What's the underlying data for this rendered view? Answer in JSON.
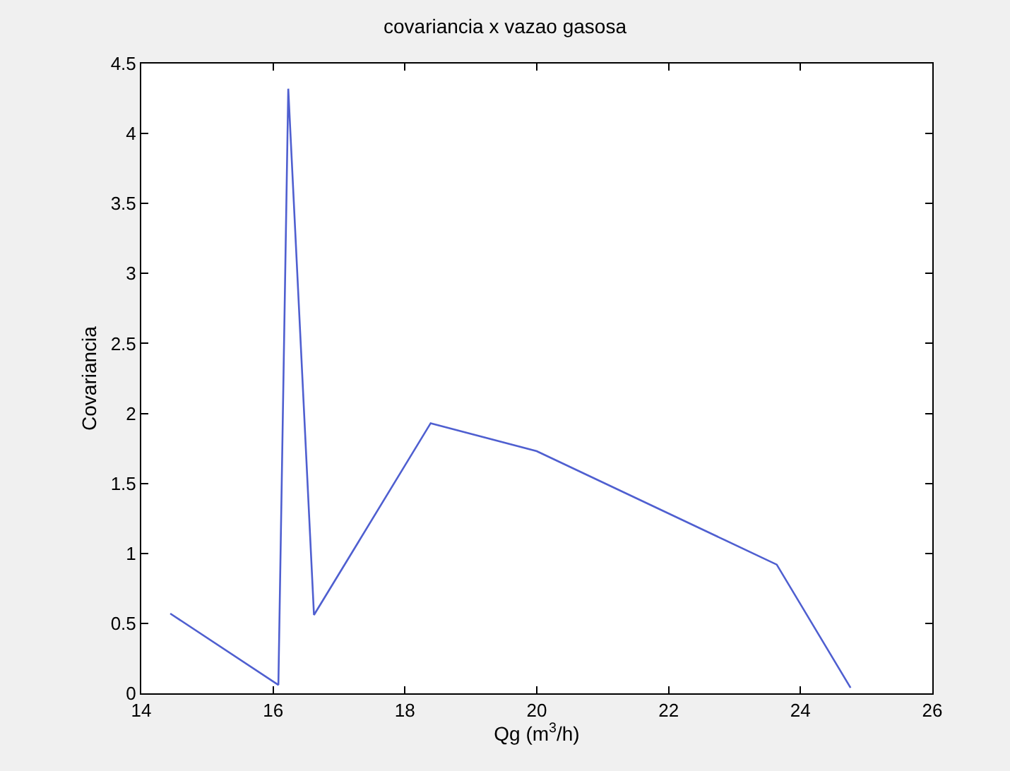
{
  "chart_data": {
    "type": "line",
    "title": "covariancia x vazao gasosa",
    "xlabel": "Qg (m$^{3}$/h)",
    "ylabel": "Covariancia",
    "x": [
      14.44,
      16.08,
      16.23,
      16.62,
      18.39,
      20.0,
      23.64,
      24.76
    ],
    "series": [
      {
        "color": "#4f5fd0",
        "values": [
          0.57,
          0.06,
          4.32,
          0.56,
          1.93,
          1.73,
          0.92,
          0.04
        ]
      }
    ],
    "xlim": [
      14,
      26
    ],
    "xticks": [
      14,
      16,
      18,
      20,
      22,
      24,
      26
    ],
    "ylim": [
      0,
      4.5
    ],
    "yticks": [
      0,
      0.5,
      1,
      1.5,
      2,
      2.5,
      3,
      3.5,
      4,
      4.5
    ],
    "legend": false,
    "marker": "none",
    "line_style": "solid"
  }
}
